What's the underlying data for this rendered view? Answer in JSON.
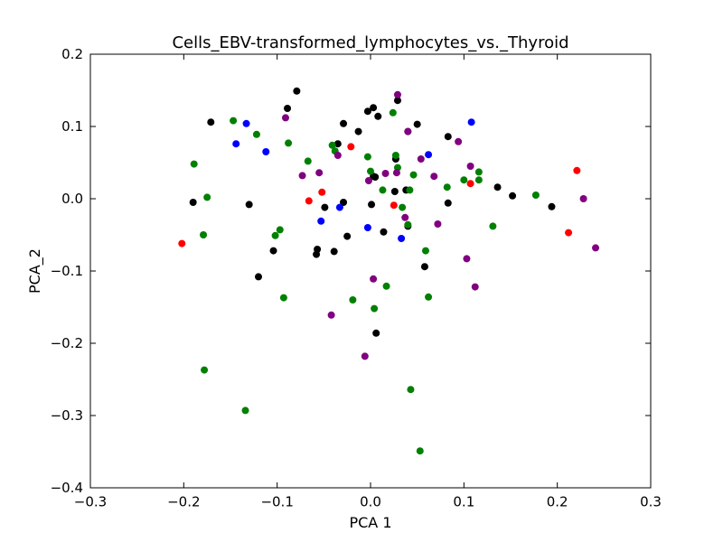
{
  "chart_data": {
    "type": "scatter",
    "title": "Cells_EBV-transformed_lymphocytes_vs._Thyroid",
    "xlabel": "PCA 1",
    "ylabel": "PCA_2",
    "xlim": [
      -0.3,
      0.3
    ],
    "ylim": [
      -0.4,
      0.2
    ],
    "xticks": [
      -0.3,
      -0.2,
      -0.1,
      0.0,
      0.1,
      0.2,
      0.3
    ],
    "xtick_labels": [
      "−0.3",
      "−0.2",
      "−0.1",
      "0.0",
      "0.1",
      "0.2",
      "0.3"
    ],
    "yticks": [
      -0.4,
      -0.3,
      -0.2,
      -0.1,
      0.0,
      0.1,
      0.2
    ],
    "ytick_labels": [
      "−0.4",
      "−0.3",
      "−0.2",
      "−0.1",
      "0.0",
      "0.1",
      "0.2"
    ],
    "grid": false,
    "series": [
      {
        "color": "#000000",
        "points": [
          [
            -0.079,
            0.149
          ],
          [
            -0.089,
            0.125
          ],
          [
            -0.171,
            0.106
          ],
          [
            -0.19,
            -0.005
          ],
          [
            -0.13,
            -0.008
          ],
          [
            -0.12,
            -0.108
          ],
          [
            -0.104,
            -0.072
          ],
          [
            -0.057,
            -0.07
          ],
          [
            -0.058,
            -0.077
          ],
          [
            -0.049,
            -0.012
          ],
          [
            -0.039,
            -0.073
          ],
          [
            -0.035,
            0.076
          ],
          [
            -0.029,
            0.104
          ],
          [
            -0.029,
            -0.005
          ],
          [
            -0.025,
            -0.052
          ],
          [
            -0.013,
            0.093
          ],
          [
            -0.003,
            0.121
          ],
          [
            0.003,
            0.126
          ],
          [
            0.008,
            0.114
          ],
          [
            0.003,
            0.031
          ],
          [
            0.005,
            0.03
          ],
          [
            0.001,
            -0.008
          ],
          [
            0.014,
            -0.046
          ],
          [
            0.027,
            0.055
          ],
          [
            0.026,
            0.01
          ],
          [
            0.029,
            0.136
          ],
          [
            0.038,
            0.012
          ],
          [
            0.04,
            0.093
          ],
          [
            0.05,
            0.103
          ],
          [
            0.04,
            -0.038
          ],
          [
            0.058,
            -0.094
          ],
          [
            0.083,
            0.086
          ],
          [
            0.083,
            -0.006
          ],
          [
            0.136,
            0.016
          ],
          [
            0.152,
            0.004
          ],
          [
            0.194,
            -0.011
          ],
          [
            0.006,
            -0.186
          ]
        ]
      },
      {
        "color": "#008000",
        "points": [
          [
            -0.189,
            0.048
          ],
          [
            -0.175,
            0.002
          ],
          [
            -0.179,
            -0.05
          ],
          [
            -0.147,
            0.108
          ],
          [
            -0.122,
            0.089
          ],
          [
            -0.088,
            0.077
          ],
          [
            -0.067,
            0.052
          ],
          [
            -0.097,
            -0.043
          ],
          [
            -0.102,
            -0.051
          ],
          [
            -0.093,
            -0.137
          ],
          [
            -0.041,
            0.074
          ],
          [
            -0.038,
            0.066
          ],
          [
            -0.019,
            -0.14
          ],
          [
            -0.003,
            0.058
          ],
          [
            0.0,
            0.038
          ],
          [
            0.013,
            0.012
          ],
          [
            0.017,
            -0.121
          ],
          [
            0.024,
            0.119
          ],
          [
            0.027,
            0.06
          ],
          [
            0.029,
            0.043
          ],
          [
            0.034,
            -0.012
          ],
          [
            0.042,
            0.012
          ],
          [
            0.046,
            0.033
          ],
          [
            0.059,
            -0.072
          ],
          [
            0.062,
            -0.136
          ],
          [
            0.082,
            0.016
          ],
          [
            0.1,
            0.026
          ],
          [
            0.116,
            0.037
          ],
          [
            0.116,
            0.026
          ],
          [
            0.131,
            -0.038
          ],
          [
            0.177,
            0.005
          ],
          [
            0.004,
            -0.152
          ],
          [
            -0.178,
            -0.237
          ],
          [
            -0.134,
            -0.293
          ],
          [
            0.043,
            -0.264
          ],
          [
            0.053,
            -0.349
          ],
          [
            0.04,
            -0.036
          ]
        ]
      },
      {
        "color": "#0000ff",
        "points": [
          [
            -0.144,
            0.076
          ],
          [
            -0.133,
            0.104
          ],
          [
            -0.112,
            0.065
          ],
          [
            -0.053,
            -0.031
          ],
          [
            -0.033,
            -0.012
          ],
          [
            -0.003,
            -0.04
          ],
          [
            0.033,
            -0.055
          ],
          [
            0.062,
            0.061
          ],
          [
            0.108,
            0.106
          ]
        ]
      },
      {
        "color": "#800080",
        "points": [
          [
            -0.091,
            0.112
          ],
          [
            -0.073,
            0.032
          ],
          [
            -0.055,
            0.036
          ],
          [
            -0.035,
            0.06
          ],
          [
            -0.042,
            -0.161
          ],
          [
            -0.002,
            0.025
          ],
          [
            0.003,
            -0.111
          ],
          [
            0.016,
            0.035
          ],
          [
            0.028,
            0.036
          ],
          [
            0.029,
            0.144
          ],
          [
            0.037,
            -0.026
          ],
          [
            0.04,
            0.093
          ],
          [
            0.054,
            0.055
          ],
          [
            0.068,
            0.031
          ],
          [
            0.072,
            -0.035
          ],
          [
            0.094,
            0.079
          ],
          [
            0.103,
            -0.083
          ],
          [
            0.107,
            0.045
          ],
          [
            0.112,
            -0.122
          ],
          [
            0.228,
            0.0
          ],
          [
            0.241,
            -0.068
          ],
          [
            -0.006,
            -0.218
          ]
        ]
      },
      {
        "color": "#ff0000",
        "points": [
          [
            -0.202,
            -0.062
          ],
          [
            -0.066,
            -0.003
          ],
          [
            -0.052,
            0.009
          ],
          [
            -0.021,
            0.072
          ],
          [
            0.025,
            -0.009
          ],
          [
            0.107,
            0.021
          ],
          [
            0.212,
            -0.047
          ],
          [
            0.221,
            0.039
          ]
        ]
      }
    ]
  }
}
